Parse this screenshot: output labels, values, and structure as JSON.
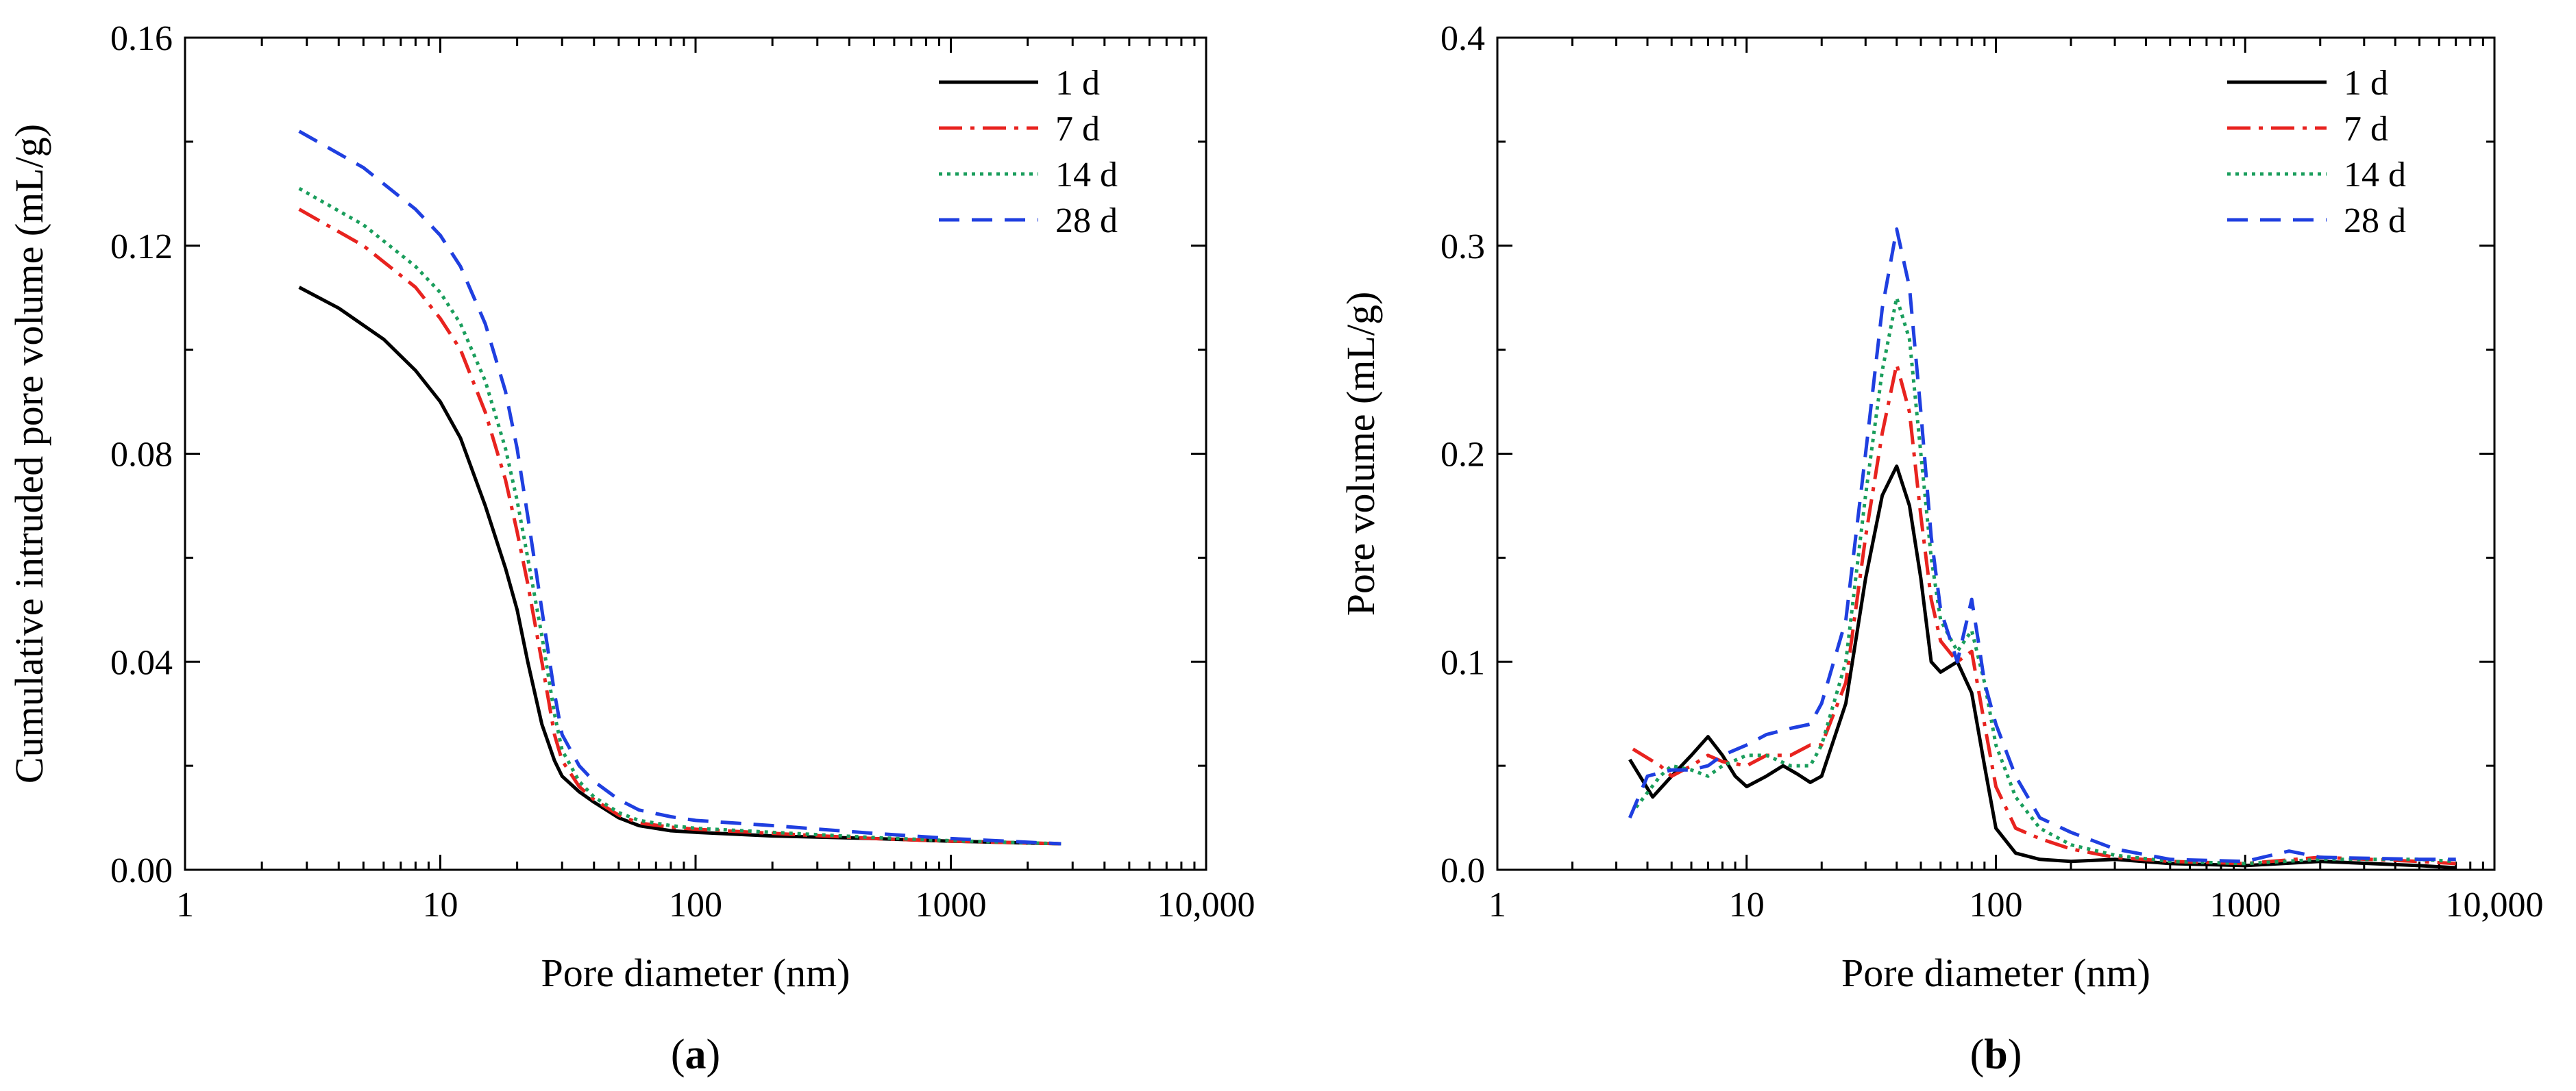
{
  "chart_data": [
    {
      "type": "line",
      "panel_label": "(a)",
      "panel_letter": "a",
      "xlabel": "Pore diameter (nm)",
      "ylabel": "Cumulative intruded pore volume (mL/g)",
      "xscale": "log",
      "xlim": [
        1,
        10000
      ],
      "ylim": [
        0,
        0.16
      ],
      "xticks": [
        1,
        10,
        100,
        1000,
        10000
      ],
      "xtick_labels": [
        "1",
        "10",
        "100",
        "1000",
        "10,000"
      ],
      "yticks": [
        0,
        0.04,
        0.08,
        0.12,
        0.16
      ],
      "ytick_labels": [
        "0.00",
        "0.04",
        "0.08",
        "0.12",
        "0.16"
      ],
      "legend_position": "top-right",
      "series": [
        {
          "name": "1 d",
          "color": "#000000",
          "dash": "solid",
          "x": [
            2.8,
            4,
            6,
            8,
            10,
            12,
            15,
            18,
            20,
            22,
            25,
            28,
            30,
            35,
            40,
            50,
            60,
            80,
            100,
            200,
            500,
            1000,
            2700
          ],
          "y": [
            0.112,
            0.108,
            0.102,
            0.096,
            0.09,
            0.083,
            0.07,
            0.058,
            0.05,
            0.04,
            0.028,
            0.021,
            0.018,
            0.015,
            0.013,
            0.01,
            0.0085,
            0.0075,
            0.0072,
            0.0065,
            0.006,
            0.0055,
            0.005
          ]
        },
        {
          "name": "7 d",
          "color": "#e8231f",
          "dash": "dashdot",
          "x": [
            2.8,
            5,
            8,
            10,
            12,
            15,
            18,
            20,
            22,
            25,
            28,
            30,
            35,
            40,
            50,
            60,
            80,
            100,
            200,
            500,
            1000,
            2700
          ],
          "y": [
            0.127,
            0.12,
            0.112,
            0.106,
            0.1,
            0.088,
            0.075,
            0.065,
            0.055,
            0.04,
            0.026,
            0.021,
            0.016,
            0.0135,
            0.0105,
            0.009,
            0.0082,
            0.0078,
            0.007,
            0.006,
            0.0055,
            0.005
          ]
        },
        {
          "name": "14 d",
          "color": "#1a9e5c",
          "dash": "dotted",
          "x": [
            2.8,
            5,
            8,
            10,
            12,
            15,
            18,
            20,
            22,
            25,
            28,
            30,
            35,
            40,
            50,
            60,
            80,
            100,
            200,
            500,
            1000,
            2700
          ],
          "y": [
            0.131,
            0.124,
            0.116,
            0.111,
            0.105,
            0.094,
            0.081,
            0.071,
            0.06,
            0.045,
            0.03,
            0.023,
            0.017,
            0.014,
            0.011,
            0.0095,
            0.0085,
            0.008,
            0.0072,
            0.0062,
            0.0056,
            0.005
          ]
        },
        {
          "name": "28 d",
          "color": "#1f3fe0",
          "dash": "dashed",
          "x": [
            2.8,
            5,
            8,
            10,
            12,
            15,
            18,
            20,
            22,
            25,
            28,
            30,
            35,
            40,
            50,
            60,
            80,
            100,
            200,
            500,
            1000,
            2700
          ],
          "y": [
            0.142,
            0.135,
            0.127,
            0.122,
            0.116,
            0.105,
            0.092,
            0.081,
            0.068,
            0.05,
            0.034,
            0.026,
            0.02,
            0.017,
            0.0135,
            0.0115,
            0.0102,
            0.0095,
            0.0085,
            0.007,
            0.006,
            0.005
          ]
        }
      ]
    },
    {
      "type": "line",
      "panel_label": "(b)",
      "panel_letter": "b",
      "xlabel": "Pore diameter (nm)",
      "ylabel": "Pore volume (mL/g)",
      "xscale": "log",
      "xlim": [
        1,
        10000
      ],
      "ylim": [
        0,
        0.4
      ],
      "xticks": [
        1,
        10,
        100,
        1000,
        10000
      ],
      "xtick_labels": [
        "1",
        "10",
        "100",
        "1000",
        "10,000"
      ],
      "yticks": [
        0,
        0.1,
        0.2,
        0.3,
        0.4
      ],
      "ytick_labels": [
        "0.0",
        "0.1",
        "0.2",
        "0.3",
        "0.4"
      ],
      "legend_position": "top-right",
      "series": [
        {
          "name": "1 d",
          "color": "#000000",
          "dash": "solid",
          "x": [
            3.4,
            4.2,
            5,
            6,
            7,
            8,
            9,
            10,
            12,
            14,
            16,
            18,
            20,
            25,
            30,
            35,
            40,
            45,
            50,
            55,
            60,
            70,
            80,
            90,
            100,
            120,
            150,
            200,
            300,
            500,
            1000,
            2000,
            5000,
            7000
          ],
          "y": [
            0.053,
            0.035,
            0.045,
            0.055,
            0.064,
            0.055,
            0.045,
            0.04,
            0.045,
            0.05,
            0.046,
            0.042,
            0.045,
            0.08,
            0.14,
            0.18,
            0.194,
            0.175,
            0.14,
            0.1,
            0.095,
            0.1,
            0.085,
            0.05,
            0.02,
            0.008,
            0.005,
            0.004,
            0.005,
            0.003,
            0.002,
            0.004,
            0.002,
            0.001
          ]
        },
        {
          "name": "7 d",
          "color": "#e8231f",
          "dash": "dashdot",
          "x": [
            3.5,
            4.5,
            5,
            6,
            7,
            8,
            10,
            12,
            15,
            18,
            20,
            25,
            30,
            35,
            40,
            45,
            50,
            55,
            60,
            70,
            80,
            90,
            100,
            120,
            150,
            200,
            300,
            500,
            1000,
            2000,
            5000,
            7000
          ],
          "y": [
            0.058,
            0.05,
            0.045,
            0.05,
            0.055,
            0.052,
            0.05,
            0.055,
            0.055,
            0.06,
            0.06,
            0.09,
            0.16,
            0.21,
            0.243,
            0.22,
            0.17,
            0.13,
            0.11,
            0.1,
            0.105,
            0.07,
            0.04,
            0.02,
            0.015,
            0.01,
            0.006,
            0.004,
            0.003,
            0.006,
            0.004,
            0.003
          ]
        },
        {
          "name": "14 d",
          "color": "#1a9e5c",
          "dash": "dotted",
          "x": [
            3.6,
            4.5,
            5,
            6,
            7,
            8,
            10,
            12,
            15,
            18,
            20,
            25,
            30,
            35,
            40,
            45,
            50,
            55,
            60,
            70,
            80,
            90,
            100,
            120,
            150,
            200,
            300,
            500,
            1000,
            2000,
            5000,
            7000
          ],
          "y": [
            0.03,
            0.045,
            0.05,
            0.048,
            0.045,
            0.05,
            0.055,
            0.055,
            0.05,
            0.05,
            0.06,
            0.1,
            0.18,
            0.24,
            0.275,
            0.255,
            0.2,
            0.15,
            0.12,
            0.105,
            0.115,
            0.09,
            0.06,
            0.035,
            0.02,
            0.012,
            0.007,
            0.004,
            0.003,
            0.005,
            0.005,
            0.004
          ]
        },
        {
          "name": "28 d",
          "color": "#1f3fe0",
          "dash": "dashed",
          "x": [
            3.4,
            4,
            5,
            6,
            7,
            8,
            10,
            12,
            15,
            18,
            20,
            25,
            30,
            35,
            40,
            45,
            50,
            55,
            60,
            70,
            80,
            85,
            90,
            100,
            120,
            150,
            200,
            300,
            500,
            1000,
            1500,
            2000,
            5000,
            7000
          ],
          "y": [
            0.025,
            0.045,
            0.048,
            0.048,
            0.05,
            0.055,
            0.06,
            0.065,
            0.068,
            0.07,
            0.08,
            0.12,
            0.2,
            0.27,
            0.308,
            0.28,
            0.22,
            0.16,
            0.125,
            0.1,
            0.13,
            0.11,
            0.09,
            0.07,
            0.045,
            0.025,
            0.018,
            0.01,
            0.005,
            0.004,
            0.009,
            0.006,
            0.005,
            0.005
          ]
        }
      ]
    }
  ]
}
